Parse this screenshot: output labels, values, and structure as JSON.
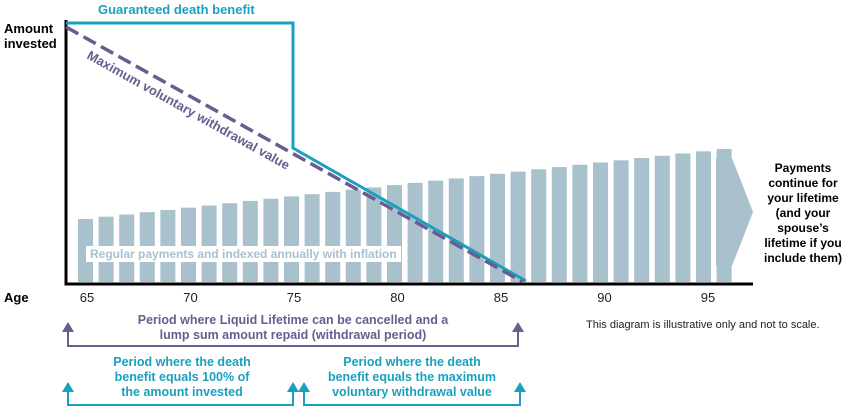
{
  "chart_data": {
    "type": "diagram",
    "xlabel": "Age",
    "ylabel": "Amount invested",
    "x_ticks": [
      "65",
      "70",
      "75",
      "80",
      "85",
      "90",
      "95"
    ],
    "bars": {
      "label": "Regular payments and indexed annually with inflation",
      "count": 32,
      "trend": "increasing"
    },
    "series": [
      {
        "name": "Guaranteed death benefit",
        "color": "#1aa0bf"
      },
      {
        "name": "Maximum voluntary withdrawal value",
        "color": "#6b5b8e"
      }
    ]
  },
  "labels": {
    "amount_invested_line1": "Amount",
    "amount_invested_line2": "invested",
    "age": "Age",
    "guaranteed_death_benefit": "Guaranteed death benefit",
    "max_withdrawal": "Maximum voluntary withdrawal value",
    "inflation": "Regular payments and indexed annually with inflation",
    "payments_continue": [
      "Payments",
      "continue for",
      "your lifetime",
      "(and your",
      "spouse’s",
      "lifetime if you",
      "include them)"
    ],
    "withdrawal_period": [
      "Period where Liquid Lifetime can be cancelled and a",
      "lump sum amount repaid (withdrawal period)"
    ],
    "death_benefit_100": [
      "Period where the death",
      "benefit equals 100% of",
      "the amount invested"
    ],
    "death_benefit_max": [
      "Period where the death",
      "benefit equals the maximum",
      "voluntary withdrawal value"
    ],
    "disclaimer": "This diagram is illustrative only and not to scale."
  },
  "colors": {
    "teal": "#1aa0bf",
    "purple": "#6b5b8e",
    "bars": "#a9c1cc",
    "arrow": "#a9c1cc",
    "axis": "#000000"
  }
}
